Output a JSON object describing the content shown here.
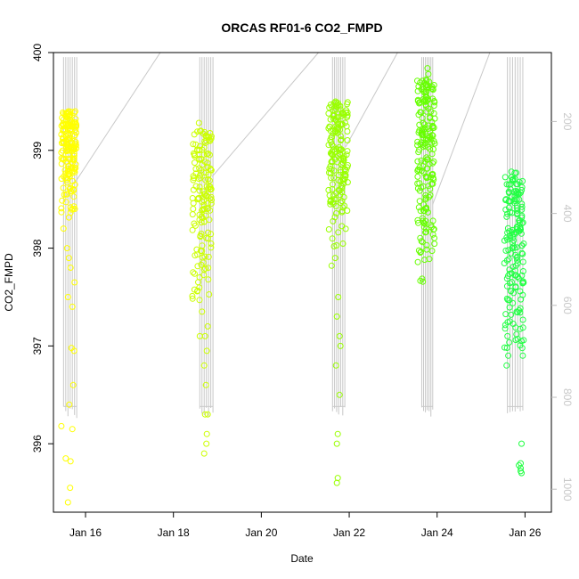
{
  "chart_data": {
    "type": "scatter",
    "title": "ORCAS RF01-6 CO2_FMPD",
    "xlabel": "Date",
    "ylabel": "CO2_FMPD",
    "xlim": [
      15.27,
      26.6
    ],
    "ylim": [
      395.3,
      400.0
    ],
    "x_ticks": [
      {
        "value": 16,
        "label": "Jan 16"
      },
      {
        "value": 18,
        "label": "Jan 18"
      },
      {
        "value": 20,
        "label": "Jan 20"
      },
      {
        "value": 22,
        "label": "Jan 22"
      },
      {
        "value": 24,
        "label": "Jan 24"
      },
      {
        "value": 26,
        "label": "Jan 26"
      }
    ],
    "y_ticks": [
      396,
      397,
      398,
      399,
      400
    ],
    "right_axis": {
      "description": "pressure (gray trace), inverted",
      "range_top": 50,
      "range_bottom": 1050,
      "ticks": [
        200,
        400,
        600,
        800,
        1000
      ]
    },
    "series": [
      {
        "color": "#ffff00",
        "center": 15.62,
        "halfwidth": 0.17,
        "points": [
          [
            15.45,
            396.18
          ],
          [
            15.55,
            395.85
          ],
          [
            15.66,
            395.82
          ],
          [
            15.6,
            395.4
          ],
          [
            15.65,
            395.55
          ],
          [
            15.7,
            396.15
          ],
          [
            15.63,
            396.4
          ],
          [
            15.72,
            396.6
          ],
          [
            15.68,
            396.98
          ],
          [
            15.74,
            396.95
          ],
          [
            15.6,
            397.5
          ],
          [
            15.7,
            397.4
          ],
          [
            15.66,
            397.8
          ],
          [
            15.75,
            397.65
          ],
          [
            15.5,
            398.2
          ],
          [
            15.58,
            398.0
          ],
          [
            15.62,
            397.9
          ]
        ],
        "cluster": {
          "ymin": 398.3,
          "ymax": 399.4,
          "count": 160,
          "seed": 11
        }
      },
      {
        "color": "#ccff00",
        "center": 18.65,
        "halfwidth": 0.22,
        "points": [
          [
            18.7,
            395.9
          ],
          [
            18.75,
            396.0
          ],
          [
            18.76,
            396.1
          ],
          [
            18.72,
            396.3
          ],
          [
            18.78,
            396.3
          ],
          [
            18.74,
            396.6
          ],
          [
            18.7,
            396.8
          ],
          [
            18.76,
            396.95
          ],
          [
            18.72,
            397.1
          ],
          [
            18.78,
            397.2
          ],
          [
            18.6,
            397.1
          ],
          [
            18.65,
            397.35
          ],
          [
            18.58,
            399.28
          ],
          [
            18.86,
            399.12
          ]
        ],
        "cluster": {
          "ymin": 397.3,
          "ymax": 399.2,
          "count": 150,
          "seed": 23
        }
      },
      {
        "color": "#99ff00",
        "center": 21.75,
        "halfwidth": 0.22,
        "points": [
          [
            21.72,
            395.6
          ],
          [
            21.74,
            395.65
          ],
          [
            21.72,
            396.0
          ],
          [
            21.74,
            396.1
          ],
          [
            21.78,
            396.5
          ],
          [
            21.6,
            397.82
          ],
          [
            21.68,
            397.9
          ],
          [
            21.75,
            397.5
          ],
          [
            21.72,
            397.3
          ],
          [
            21.78,
            397.1
          ],
          [
            21.8,
            397.0
          ],
          [
            21.7,
            396.8
          ]
        ],
        "cluster": {
          "ymin": 398.0,
          "ymax": 399.5,
          "count": 170,
          "seed": 37
        }
      },
      {
        "color": "#66ff00",
        "center": 23.75,
        "halfwidth": 0.2,
        "points": [
          [
            23.78,
            399.84
          ],
          [
            23.8,
            399.78
          ],
          [
            23.82,
            399.7
          ],
          [
            23.76,
            399.6
          ]
        ],
        "cluster": {
          "ymin": 397.5,
          "ymax": 399.75,
          "count": 190,
          "seed": 53
        }
      },
      {
        "color": "#22ff44",
        "center": 25.75,
        "halfwidth": 0.22,
        "points": [
          [
            25.92,
            396.0
          ],
          [
            25.9,
            395.75
          ],
          [
            25.9,
            395.8
          ],
          [
            25.92,
            395.7
          ],
          [
            25.86,
            395.78
          ],
          [
            25.9,
            395.72
          ],
          [
            25.62,
            396.9
          ],
          [
            25.58,
            396.8
          ],
          [
            25.6,
            397.1
          ],
          [
            25.95,
            396.9
          ],
          [
            25.92,
            397.05
          ]
        ],
        "cluster": {
          "ymin": 396.8,
          "ymax": 398.8,
          "count": 170,
          "seed": 71
        }
      }
    ],
    "pressure_segments": [
      {
        "x0": 15.5,
        "x1": 15.8
      },
      {
        "x0": 18.6,
        "x1": 18.9
      },
      {
        "x0": 21.62,
        "x1": 21.9
      },
      {
        "x0": 23.65,
        "x1": 23.9
      },
      {
        "x0": 25.6,
        "x1": 25.95
      }
    ],
    "pressure_transits": [
      [
        15.78,
        330,
        17.7,
        50
      ],
      [
        18.88,
        320,
        21.3,
        50
      ],
      [
        21.92,
        255,
        23.1,
        50
      ],
      [
        23.9,
        380,
        25.2,
        50
      ]
    ]
  }
}
